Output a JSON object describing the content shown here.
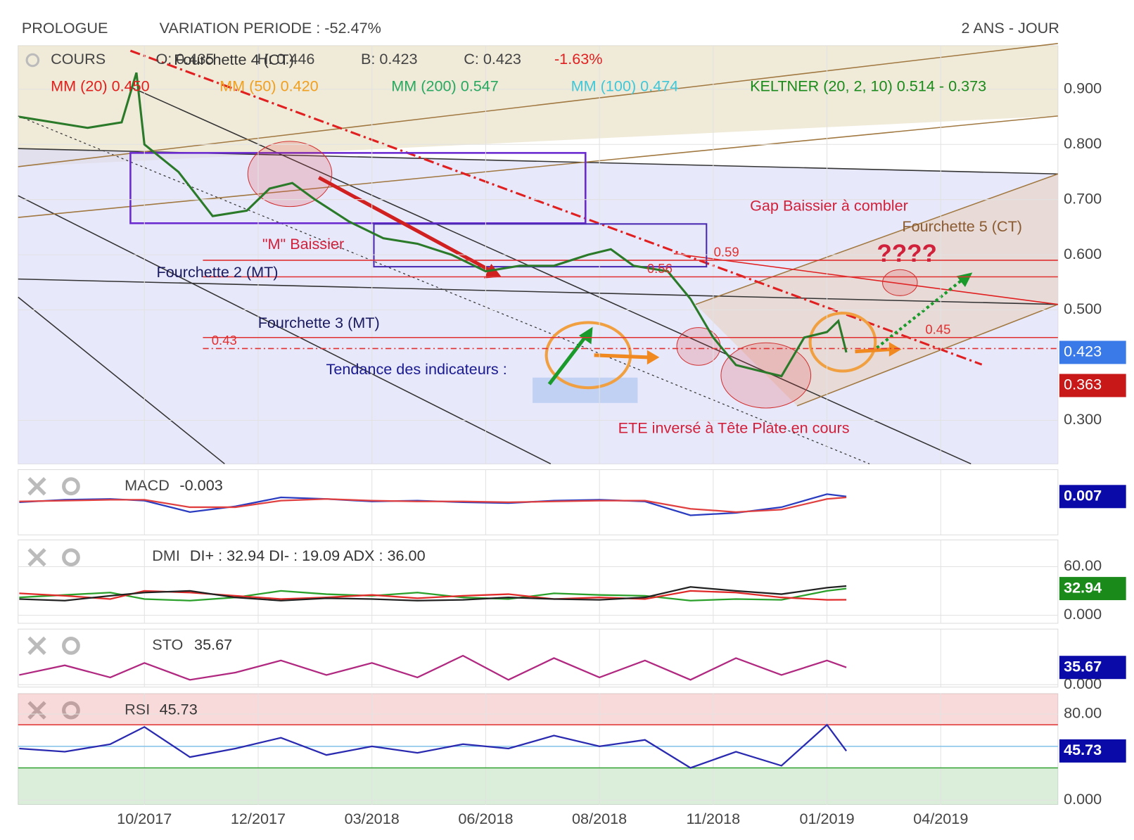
{
  "header": {
    "name": "PROLOGUE",
    "variation": "VARIATION PERIODE : -52.47%",
    "period": "2 ANS - JOUR"
  },
  "chart_data": [
    {
      "type": "line",
      "ohlc": [
        "O: 0.435",
        "H: 0.446",
        "B: 0.423",
        "C: 0.423"
      ],
      "change": "-1.63%",
      "overlay_labels": [
        {
          "text": "MM (20) 0.450",
          "color": "#e0201c"
        },
        {
          "text": "MM (50) 0.420",
          "color": "#f0a020"
        },
        {
          "text": "MM (200) 0.547",
          "color": "#2aa860"
        },
        {
          "text": "MM (100) 0.474",
          "color": "#40c8d8"
        },
        {
          "text": "KELTNER (20, 2, 10) 0.514 - 0.373",
          "color": "#1a8a1a"
        }
      ],
      "annotations": [
        {
          "text": "Fourchette 2 (MT)",
          "color": "#1a1a60"
        },
        {
          "text": "Fourchette 3 (MT)",
          "color": "#1a1a60"
        },
        {
          "text": "\"M\" Baissier",
          "color": "#d0203a"
        },
        {
          "text": "Tendance des indicateurs :",
          "color": "#1a1a90"
        },
        {
          "text": "Gap Baissier à combler",
          "color": "#d0203a"
        },
        {
          "text": "Fourchette 5 (CT)",
          "color": "#8a5a30"
        },
        {
          "text": "????",
          "color": "#d0203a"
        },
        {
          "text": "ETE inversé à Tête Plate en cours",
          "color": "#d0203a"
        },
        {
          "text": "Fourchette 4 (CT)",
          "color": "#333333"
        }
      ],
      "x": [
        -0.1,
        0.2,
        0.5,
        0.8,
        0.93,
        1.0,
        1.3,
        1.6,
        1.9,
        2.1,
        2.3,
        2.5,
        2.8,
        3.1,
        3.4,
        3.7,
        4.0,
        4.3,
        4.6,
        4.9,
        5.1,
        5.3,
        5.6,
        5.8,
        6.0,
        6.2,
        6.4,
        6.6,
        6.8,
        7.0,
        7.1,
        7.17
      ],
      "series": [
        {
          "name": "COURS",
          "color": "#2a7a2a",
          "values": [
            0.85,
            0.84,
            0.83,
            0.84,
            0.93,
            0.8,
            0.75,
            0.67,
            0.68,
            0.72,
            0.73,
            0.7,
            0.66,
            0.63,
            0.62,
            0.6,
            0.57,
            0.58,
            0.58,
            0.6,
            0.61,
            0.58,
            0.57,
            0.52,
            0.45,
            0.4,
            0.39,
            0.38,
            0.45,
            0.46,
            0.48,
            0.423
          ]
        }
      ],
      "levels": [
        {
          "value": 0.43,
          "color": "#e03030"
        },
        {
          "value": 0.45,
          "color": "#e03030"
        },
        {
          "value": 0.56,
          "color": "#e03030"
        },
        {
          "value": 0.59,
          "color": "#e03030"
        }
      ],
      "price_labels": [
        {
          "value": 0.423,
          "color": "#3a7ae8"
        },
        {
          "value": 0.363,
          "color": "#c81818"
        }
      ],
      "xlim": [
        -0.11,
        9.03
      ],
      "xticks": [
        {
          "value": 1,
          "label": "10/2017"
        },
        {
          "value": 2,
          "label": "12/2017"
        },
        {
          "value": 3,
          "label": "03/2018"
        },
        {
          "value": 4,
          "label": "06/2018"
        },
        {
          "value": 5,
          "label": "08/2018"
        },
        {
          "value": 6,
          "label": "11/2018"
        },
        {
          "value": 7,
          "label": "01/2019"
        },
        {
          "value": 8,
          "label": "04/2019"
        }
      ],
      "ylim": [
        0.221,
        0.979
      ],
      "yticks": [
        {
          "value": 0.3,
          "label": "0.300"
        },
        {
          "value": 0.5,
          "label": "0.500"
        },
        {
          "value": 0.6,
          "label": "0.600"
        },
        {
          "value": 0.7,
          "label": "0.700"
        },
        {
          "value": 0.8,
          "label": "0.800"
        },
        {
          "value": 0.9,
          "label": "0.900"
        }
      ],
      "grid": true
    },
    {
      "type": "line",
      "title": "MACD",
      "value": -0.003,
      "x": [
        -0.1,
        0.3,
        0.7,
        1.0,
        1.4,
        1.8,
        2.2,
        2.6,
        3.0,
        3.4,
        3.8,
        4.2,
        4.6,
        5.0,
        5.4,
        5.8,
        6.2,
        6.6,
        7.0,
        7.17
      ],
      "series": [
        {
          "color": "#2a3cc0",
          "values": [
            0.0,
            0.003,
            0.004,
            0.002,
            -0.012,
            -0.005,
            0.006,
            0.004,
            0.001,
            0.002,
            0.0,
            -0.001,
            0.002,
            0.003,
            0.001,
            -0.016,
            -0.013,
            -0.006,
            0.01,
            0.007
          ]
        },
        {
          "color": "#e04040",
          "values": [
            0.001,
            0.002,
            0.003,
            0.003,
            -0.006,
            -0.006,
            0.002,
            0.004,
            0.002,
            0.001,
            0.001,
            0.0,
            0.001,
            0.002,
            0.002,
            -0.008,
            -0.012,
            -0.009,
            0.004,
            0.006
          ]
        }
      ],
      "last_value": {
        "value": 0.007,
        "color": "#0a0aa8"
      },
      "ylim": [
        -0.04,
        0.04
      ],
      "yticks": [],
      "grid": true
    },
    {
      "type": "line",
      "title": "DMI",
      "legend_text": "DI+ : 32.94 DI- : 19.09 ADX : 36.00",
      "x": [
        -0.1,
        0.3,
        0.7,
        1.0,
        1.4,
        1.8,
        2.2,
        2.6,
        3.0,
        3.4,
        3.8,
        4.2,
        4.6,
        5.0,
        5.4,
        5.8,
        6.2,
        6.6,
        7.0,
        7.17
      ],
      "series": [
        {
          "color": "#2aa02a",
          "values": [
            22,
            25,
            28,
            20,
            18,
            22,
            30,
            26,
            24,
            28,
            22,
            20,
            27,
            25,
            24,
            18,
            20,
            19,
            30,
            32.94
          ]
        },
        {
          "color": "#e02a2a",
          "values": [
            27,
            24,
            20,
            30,
            28,
            24,
            20,
            22,
            25,
            21,
            24,
            26,
            20,
            22,
            20,
            30,
            28,
            22,
            19,
            19.09
          ]
        },
        {
          "color": "#222222",
          "values": [
            20,
            18,
            24,
            28,
            30,
            22,
            18,
            21,
            20,
            18,
            19,
            22,
            20,
            19,
            22,
            35,
            30,
            26,
            34,
            36
          ]
        }
      ],
      "last_value": {
        "value": 32.94,
        "color": "#1a8a1a"
      },
      "ylim": [
        -10,
        93
      ],
      "yticks": [
        {
          "value": 60,
          "label": "60.00"
        },
        {
          "value": 0,
          "label": "0.000"
        }
      ],
      "grid": true
    },
    {
      "type": "line",
      "title": "STO",
      "value": 35.67,
      "x": [
        -0.1,
        0.3,
        0.7,
        1.0,
        1.4,
        1.8,
        2.2,
        2.6,
        3.0,
        3.4,
        3.8,
        4.2,
        4.6,
        5.0,
        5.4,
        5.8,
        6.2,
        6.6,
        7.0,
        7.17
      ],
      "series": [
        {
          "color": "#b02880",
          "values": [
            20,
            40,
            15,
            45,
            10,
            25,
            50,
            20,
            45,
            15,
            60,
            10,
            55,
            15,
            50,
            10,
            55,
            20,
            50,
            35.67
          ]
        }
      ],
      "last_value": {
        "value": 35.67,
        "color": "#0a0aa8"
      },
      "ylim": [
        -5,
        115
      ],
      "yticks": [
        {
          "value": 0,
          "label": "0.000"
        }
      ],
      "grid": true
    },
    {
      "type": "line",
      "title": "RSI",
      "value": 45.73,
      "x": [
        -0.1,
        0.3,
        0.7,
        1.0,
        1.4,
        1.8,
        2.2,
        2.6,
        3.0,
        3.4,
        3.8,
        4.2,
        4.6,
        5.0,
        5.4,
        5.8,
        6.2,
        6.6,
        7.0,
        7.17
      ],
      "series": [
        {
          "color": "#2a2ab0",
          "values": [
            48,
            45,
            52,
            68,
            40,
            48,
            58,
            42,
            50,
            44,
            52,
            48,
            60,
            50,
            56,
            30,
            45,
            32,
            70,
            45.73
          ]
        }
      ],
      "levels": [
        {
          "value": 70,
          "color": "#e03030"
        },
        {
          "value": 50,
          "color": "#80c0e8"
        },
        {
          "value": 30,
          "color": "#30a030"
        }
      ],
      "bands": true,
      "last_value": {
        "value": 45.73,
        "color": "#0a0aa8"
      },
      "ylim": [
        -4,
        99
      ],
      "yticks": [
        {
          "value": 80,
          "label": "80.00"
        },
        {
          "value": 0,
          "label": "0.000"
        }
      ],
      "grid": true
    }
  ]
}
